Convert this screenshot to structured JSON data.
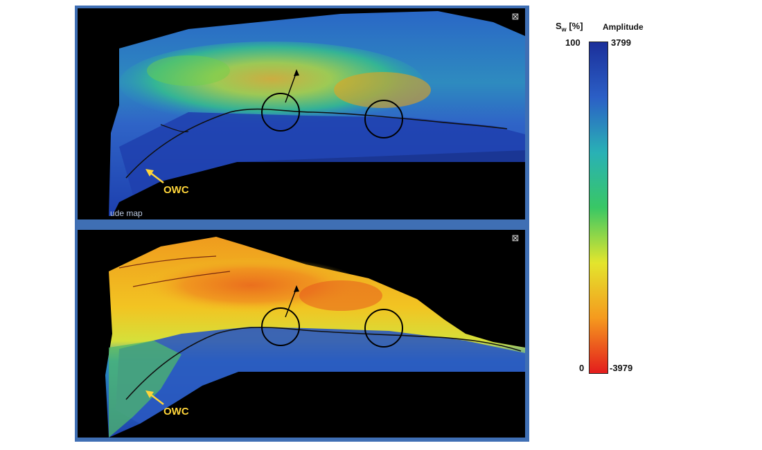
{
  "panels": [
    {
      "id": "top",
      "label": "ude map",
      "owc_label": "OWC",
      "corner_icon": "crosshair-icon"
    },
    {
      "id": "bottom",
      "label": "",
      "owc_label": "OWC",
      "corner_icon": "crosshair-icon"
    }
  ],
  "legend": {
    "sw_title_main": "S",
    "sw_title_sub": "w",
    "sw_title_unit": "[%]",
    "amp_title": "Amplitude",
    "sw_max": "100",
    "sw_min": "0",
    "amp_max": "3799",
    "amp_min": "-3979",
    "colors": [
      "#1b2f9a",
      "#2b5fc6",
      "#29b1b5",
      "#39c765",
      "#e3e52d",
      "#f59a1e",
      "#e31d1d"
    ]
  },
  "colors": {
    "background": "#000000",
    "frame": "#3f6fb4",
    "annotation": "#ffd53a"
  }
}
